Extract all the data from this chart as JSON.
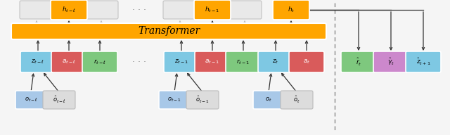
{
  "bg_color": "#f5f5f5",
  "transformer_color": "#FFA500",
  "transformer_label": "Transformer",
  "box_colors": {
    "h_gray": "#E8E8E8",
    "h_active": "#FFA500",
    "z": "#7EC8E3",
    "a": "#D95B5B",
    "r": "#7EC87E",
    "o": "#A8C8E8",
    "o_hat": "#DCDCDC",
    "r_hat": "#7EC87E",
    "gamma_hat": "#CC88CC",
    "z_next": "#7EC8E3"
  },
  "figsize": [
    6.4,
    1.92
  ],
  "dpi": 100
}
